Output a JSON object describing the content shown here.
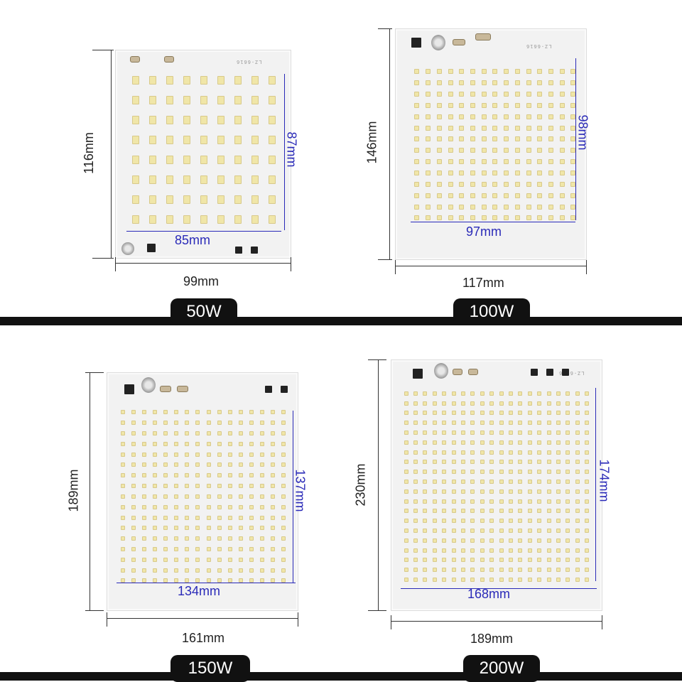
{
  "colors": {
    "background": "#ffffff",
    "divider": "#111111",
    "badge": "#111111",
    "dimension_line": "#333333",
    "inner_dimension": "#2a2ab8",
    "pcb": "#f2f2f2",
    "led": "#f0e6a8"
  },
  "panels": [
    {
      "watt": "50W",
      "outer_width": "99mm",
      "outer_height": "116mm",
      "inner_width": "85mm",
      "inner_height": "87mm",
      "board_code": "LZ-6616",
      "led_grid": {
        "cols": 9,
        "rows": 8
      }
    },
    {
      "watt": "100W",
      "outer_width": "117mm",
      "outer_height": "146mm",
      "inner_width": "97mm",
      "inner_height": "98mm",
      "board_code": "LZ-6616",
      "led_grid": {
        "cols": 15,
        "rows": 14
      }
    },
    {
      "watt": "150W",
      "outer_width": "161mm",
      "outer_height": "189mm",
      "inner_width": "134mm",
      "inner_height": "137mm",
      "board_code": "",
      "led_grid": {
        "cols": 16,
        "rows": 17
      }
    },
    {
      "watt": "200W",
      "outer_width": "189mm",
      "outer_height": "230mm",
      "inner_width": "168mm",
      "inner_height": "174mm",
      "board_code": "LZ-6616",
      "led_grid": {
        "cols": 20,
        "rows": 20
      }
    }
  ]
}
